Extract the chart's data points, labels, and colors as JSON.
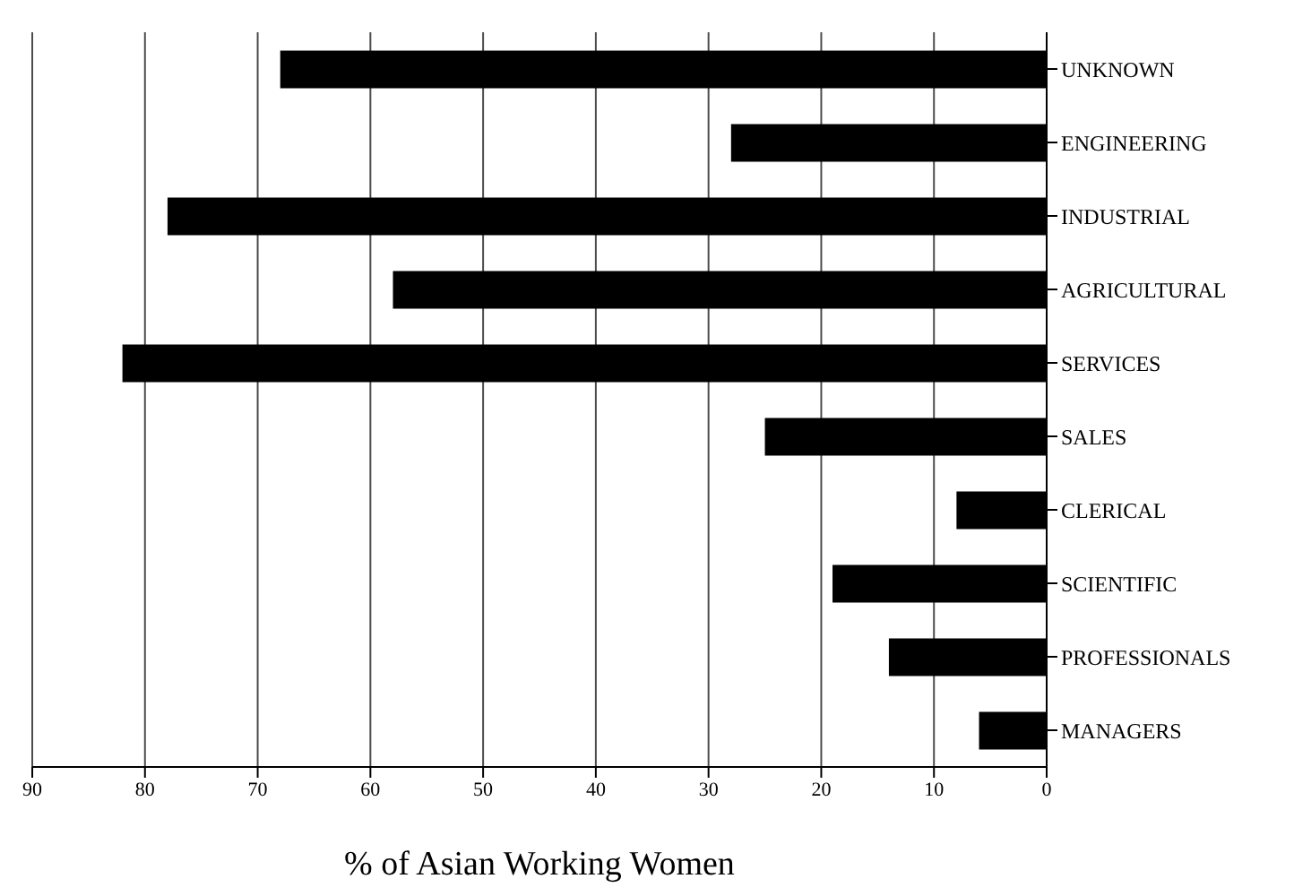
{
  "chart_data": {
    "type": "bar",
    "orientation": "horizontal",
    "xlabel": "% of Asian Working Women",
    "categories": [
      "UNKNOWN",
      "ENGINEERING",
      "INDUSTRIAL",
      "AGRICULTURAL",
      "SERVICES",
      "SALES",
      "CLERICAL",
      "SCIENTIFIC",
      "PROFESSIONALS",
      "MANAGERS"
    ],
    "values": [
      68,
      28,
      78,
      58,
      82,
      25,
      8,
      19,
      14,
      6
    ],
    "color": "#000000",
    "xlim": [
      90,
      0
    ],
    "xticks": [
      90,
      80,
      70,
      60,
      50,
      40,
      30,
      20,
      10,
      0
    ],
    "grid": "x"
  }
}
